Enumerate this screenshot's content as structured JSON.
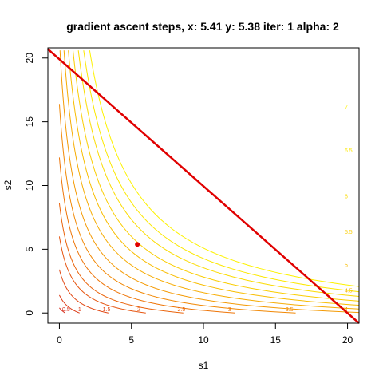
{
  "chart_data": {
    "type": "contour",
    "title": "gradient ascent steps, x: 5.41  y: 5.38  iter: 1 alpha: 2",
    "xlabel": "s1",
    "ylabel": "s2",
    "xlim": [
      -0.8,
      20.8
    ],
    "ylim": [
      -0.8,
      20.8
    ],
    "x_ticks": [
      0,
      5,
      10,
      15,
      20
    ],
    "y_ticks": [
      0,
      5,
      10,
      15,
      20
    ],
    "x_tick_labels": [
      "0",
      "5",
      "10",
      "15",
      "20"
    ],
    "y_tick_labels": [
      "0",
      "5",
      "10",
      "15",
      "20"
    ],
    "contours": [
      {
        "level": 0.5,
        "label": "0.5",
        "x_at_y0": 0.4,
        "label_x": 0.2,
        "label_y": 0.15,
        "color": "#d7301f"
      },
      {
        "level": 1,
        "label": "1",
        "x_at_y0": 1.4,
        "label_x": 1.3,
        "label_y": 0.15,
        "color": "#dc3c18"
      },
      {
        "level": 1.5,
        "label": "1.5",
        "x_at_y0": 3.4,
        "label_x": 3.0,
        "label_y": 0.15,
        "color": "#e14814"
      },
      {
        "level": 2,
        "label": "2",
        "x_at_y0": 6.0,
        "label_x": 5.4,
        "label_y": 0.15,
        "color": "#e65510"
      },
      {
        "level": 2.5,
        "label": "2.5",
        "x_at_y0": 8.6,
        "label_x": 8.2,
        "label_y": 0.15,
        "color": "#ea640c"
      },
      {
        "level": 3,
        "label": "3",
        "x_at_y0": 12.2,
        "label_x": 11.7,
        "label_y": 0.15,
        "color": "#ee7508"
      },
      {
        "level": 3.5,
        "label": "3.5",
        "x_at_y0": 16.4,
        "label_x": 15.7,
        "label_y": 0.15,
        "color": "#f18805"
      },
      {
        "level": 4,
        "label": "4",
        "x_at_y0": 21.5,
        "label_x": 19.8,
        "label_y": 0.15,
        "color": "#f49a04"
      },
      {
        "level": 4.5,
        "label": "4.5",
        "x_at_y0": 27.5,
        "label_x": 19.8,
        "label_y": 1.6,
        "color": "#f6ac03"
      },
      {
        "level": 5,
        "label": "5",
        "x_at_y0": 34.0,
        "label_x": 19.8,
        "label_y": 3.6,
        "color": "#f8bd02"
      },
      {
        "level": 5.5,
        "label": "5.5",
        "x_at_y0": 41.0,
        "label_x": 19.8,
        "label_y": 6.2,
        "color": "#facd02"
      },
      {
        "level": 6,
        "label": "6",
        "x_at_y0": 49.0,
        "label_x": 19.8,
        "label_y": 9.0,
        "color": "#fbdb01"
      },
      {
        "level": 6.5,
        "label": "6.5",
        "x_at_y0": 57.0,
        "label_x": 19.8,
        "label_y": 12.6,
        "color": "#fce801"
      },
      {
        "level": 7,
        "label": "7",
        "x_at_y0": 66.0,
        "label_x": 19.8,
        "label_y": 16.0,
        "color": "#fdf200"
      }
    ],
    "constraint_line": {
      "x1": -0.8,
      "y1": 20.7,
      "x2": 20.8,
      "y2": -0.8,
      "color": "#e00000"
    },
    "current_point": {
      "x": 5.41,
      "y": 5.38,
      "color": "#e00000"
    }
  }
}
